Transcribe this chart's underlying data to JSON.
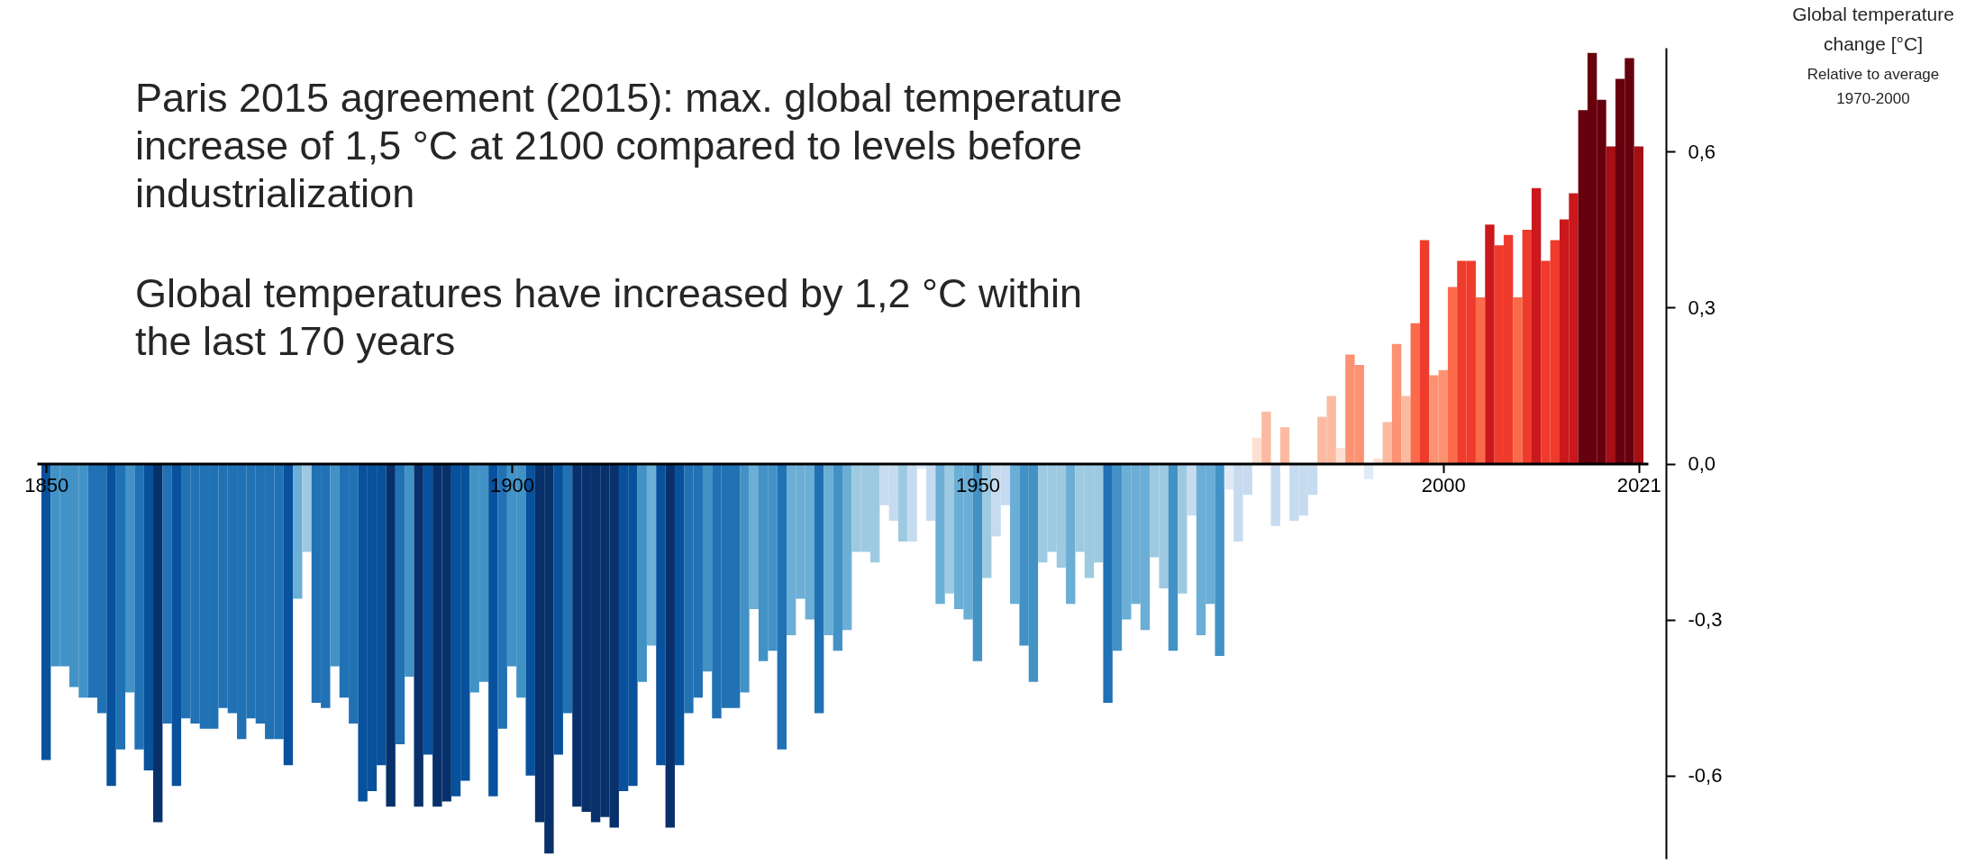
{
  "chart_data": {
    "type": "bar",
    "ylabel": "Global temperature change [°C]",
    "subtitle": "Relative to average 1970-2000",
    "annotations": [
      "Paris 2015 agreement (2015): max. global temperature increase of 1,5 °C at 2100 compared to levels before industrialization",
      "Global temperatures have increased by 1,2 °C within the last 170 years"
    ],
    "x": [
      1850,
      1851,
      1852,
      1853,
      1854,
      1855,
      1856,
      1857,
      1858,
      1859,
      1860,
      1861,
      1862,
      1863,
      1864,
      1865,
      1866,
      1867,
      1868,
      1869,
      1870,
      1871,
      1872,
      1873,
      1874,
      1875,
      1876,
      1877,
      1878,
      1879,
      1880,
      1881,
      1882,
      1883,
      1884,
      1885,
      1886,
      1887,
      1888,
      1889,
      1890,
      1891,
      1892,
      1893,
      1894,
      1895,
      1896,
      1897,
      1898,
      1899,
      1900,
      1901,
      1902,
      1903,
      1904,
      1905,
      1906,
      1907,
      1908,
      1909,
      1910,
      1911,
      1912,
      1913,
      1914,
      1915,
      1916,
      1917,
      1918,
      1919,
      1920,
      1921,
      1922,
      1923,
      1924,
      1925,
      1926,
      1927,
      1928,
      1929,
      1930,
      1931,
      1932,
      1933,
      1934,
      1935,
      1936,
      1937,
      1938,
      1939,
      1940,
      1941,
      1942,
      1943,
      1944,
      1945,
      1946,
      1947,
      1948,
      1949,
      1950,
      1951,
      1952,
      1953,
      1954,
      1955,
      1956,
      1957,
      1958,
      1959,
      1960,
      1961,
      1962,
      1963,
      1964,
      1965,
      1966,
      1967,
      1968,
      1969,
      1970,
      1971,
      1972,
      1973,
      1974,
      1975,
      1976,
      1977,
      1978,
      1979,
      1980,
      1981,
      1982,
      1983,
      1984,
      1985,
      1986,
      1987,
      1988,
      1989,
      1990,
      1991,
      1992,
      1993,
      1994,
      1995,
      1996,
      1997,
      1998,
      1999,
      2000,
      2001,
      2002,
      2003,
      2004,
      2005,
      2006,
      2007,
      2008,
      2009,
      2010,
      2011,
      2012,
      2013,
      2014,
      2015,
      2016,
      2017,
      2018,
      2019,
      2020,
      2021
    ],
    "values": [
      -0.57,
      -0.39,
      -0.39,
      -0.43,
      -0.45,
      -0.45,
      -0.48,
      -0.62,
      -0.55,
      -0.44,
      -0.55,
      -0.59,
      -0.69,
      -0.5,
      -0.62,
      -0.49,
      -0.5,
      -0.51,
      -0.51,
      -0.47,
      -0.48,
      -0.53,
      -0.49,
      -0.5,
      -0.53,
      -0.53,
      -0.58,
      -0.26,
      -0.17,
      -0.46,
      -0.47,
      -0.39,
      -0.45,
      -0.5,
      -0.65,
      -0.63,
      -0.58,
      -0.66,
      -0.54,
      -0.41,
      -0.66,
      -0.56,
      -0.66,
      -0.65,
      -0.64,
      -0.61,
      -0.44,
      -0.42,
      -0.64,
      -0.51,
      -0.39,
      -0.45,
      -0.6,
      -0.69,
      -0.75,
      -0.56,
      -0.48,
      -0.66,
      -0.67,
      -0.69,
      -0.68,
      -0.7,
      -0.63,
      -0.62,
      -0.42,
      -0.35,
      -0.58,
      -0.7,
      -0.58,
      -0.48,
      -0.45,
      -0.4,
      -0.49,
      -0.47,
      -0.47,
      -0.44,
      -0.28,
      -0.38,
      -0.36,
      -0.55,
      -0.33,
      -0.26,
      -0.3,
      -0.48,
      -0.33,
      -0.36,
      -0.32,
      -0.17,
      -0.17,
      -0.19,
      -0.08,
      -0.11,
      -0.15,
      -0.15,
      -0.01,
      -0.11,
      -0.27,
      -0.25,
      -0.28,
      -0.3,
      -0.38,
      -0.22,
      -0.14,
      -0.08,
      -0.27,
      -0.35,
      -0.42,
      -0.19,
      -0.17,
      -0.2,
      -0.27,
      -0.17,
      -0.22,
      -0.19,
      -0.46,
      -0.36,
      -0.3,
      -0.27,
      -0.32,
      -0.18,
      -0.24,
      -0.36,
      -0.25,
      -0.1,
      -0.33,
      -0.27,
      -0.37,
      -0.05,
      -0.15,
      -0.06,
      0.05,
      0.1,
      -0.12,
      0.07,
      -0.11,
      -0.1,
      -0.06,
      0.09,
      0.13,
      0.03,
      0.21,
      0.19,
      -0.03,
      0.01,
      0.08,
      0.23,
      0.13,
      0.27,
      0.43,
      0.17,
      0.18,
      0.34,
      0.39,
      0.39,
      0.32,
      0.46,
      0.42,
      0.44,
      0.32,
      0.45,
      0.53,
      0.39,
      0.43,
      0.47,
      0.52,
      0.68,
      0.79,
      0.7,
      0.61,
      0.74,
      0.78,
      0.61
    ],
    "colors": [
      "#08519c",
      "#4292c6",
      "#4292c6",
      "#4292c6",
      "#4292c6",
      "#2171b5",
      "#2171b5",
      "#08519c",
      "#2171b5",
      "#4292c6",
      "#2171b5",
      "#08519c",
      "#08306b",
      "#2171b5",
      "#08519c",
      "#2171b5",
      "#2171b5",
      "#2171b5",
      "#2171b5",
      "#2171b5",
      "#2171b5",
      "#2171b5",
      "#2171b5",
      "#2171b5",
      "#2171b5",
      "#2171b5",
      "#08519c",
      "#6baed6",
      "#9ecae1",
      "#2171b5",
      "#2171b5",
      "#4292c6",
      "#2171b5",
      "#2171b5",
      "#08519c",
      "#08519c",
      "#08519c",
      "#08306b",
      "#2171b5",
      "#4292c6",
      "#08306b",
      "#08519c",
      "#08306b",
      "#08306b",
      "#08519c",
      "#08519c",
      "#4292c6",
      "#4292c6",
      "#08519c",
      "#2171b5",
      "#4292c6",
      "#4292c6",
      "#08519c",
      "#08306b",
      "#08306b",
      "#08519c",
      "#2171b5",
      "#08306b",
      "#08306b",
      "#08306b",
      "#08306b",
      "#08306b",
      "#08519c",
      "#08519c",
      "#4292c6",
      "#6baed6",
      "#08519c",
      "#08306b",
      "#08519c",
      "#2171b5",
      "#2171b5",
      "#4292c6",
      "#2171b5",
      "#2171b5",
      "#2171b5",
      "#4292c6",
      "#6baed6",
      "#4292c6",
      "#4292c6",
      "#2171b5",
      "#6baed6",
      "#6baed6",
      "#6baed6",
      "#2171b5",
      "#6baed6",
      "#4292c6",
      "#6baed6",
      "#9ecae1",
      "#9ecae1",
      "#9ecae1",
      "#c6dbef",
      "#c6dbef",
      "#9ecae1",
      "#c6dbef",
      "#deebf7",
      "#c6dbef",
      "#6baed6",
      "#9ecae1",
      "#6baed6",
      "#6baed6",
      "#4292c6",
      "#9ecae1",
      "#c6dbef",
      "#c6dbef",
      "#6baed6",
      "#4292c6",
      "#4292c6",
      "#9ecae1",
      "#9ecae1",
      "#9ecae1",
      "#6baed6",
      "#9ecae1",
      "#9ecae1",
      "#9ecae1",
      "#2171b5",
      "#4292c6",
      "#6baed6",
      "#6baed6",
      "#6baed6",
      "#9ecae1",
      "#9ecae1",
      "#4292c6",
      "#9ecae1",
      "#c6dbef",
      "#6baed6",
      "#6baed6",
      "#4292c6",
      "#deebf7",
      "#c6dbef",
      "#c6dbef",
      "#fee0d2",
      "#fcbba1",
      "#c6dbef",
      "#fcbba1",
      "#c6dbef",
      "#c6dbef",
      "#c6dbef",
      "#fcbba1",
      "#fcbba1",
      "#fee0d2",
      "#fc9272",
      "#fc9272",
      "#deebf7",
      "#fee0d2",
      "#fcbba1",
      "#fc9272",
      "#fcbba1",
      "#fb6a4a",
      "#ef3b2c",
      "#fc9272",
      "#fc9272",
      "#fb6a4a",
      "#ef3b2c",
      "#ef3b2c",
      "#fb6a4a",
      "#cb181d",
      "#ef3b2c",
      "#ef3b2c",
      "#fb6a4a",
      "#ef3b2c",
      "#cb181d",
      "#ef3b2c",
      "#ef3b2c",
      "#cb181d",
      "#cb181d",
      "#67000d",
      "#67000d",
      "#67000d",
      "#a50f15",
      "#67000d",
      "#67000d",
      "#a50f15"
    ],
    "xlim": [
      1849.5,
      2021.5
    ],
    "xticks": [
      1850,
      1900,
      1950,
      2000,
      2021
    ],
    "ylim": [
      -0.76,
      0.8
    ],
    "yticks": [
      {
        "value": -0.6,
        "label": "-0,6"
      },
      {
        "value": -0.3,
        "label": "-0,3"
      },
      {
        "value": 0,
        "label": "0,0"
      },
      {
        "value": 0.3,
        "label": "0,3"
      },
      {
        "value": 0.6,
        "label": "0,6"
      }
    ]
  }
}
